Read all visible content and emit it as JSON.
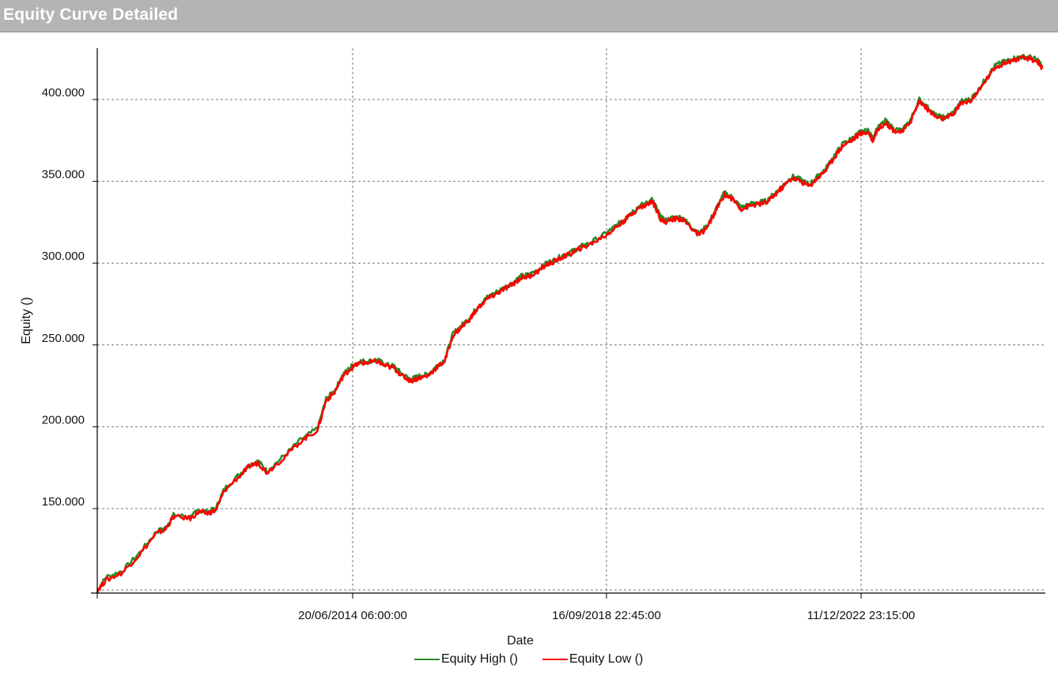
{
  "title": "Equity Curve Detailed",
  "colors": {
    "high": "#2a8a2a",
    "low": "#ff0000",
    "grid": "#777777"
  },
  "chart_data": {
    "type": "line",
    "xlabel": "Date",
    "ylabel": "Equity ()",
    "x_tick_labels": [
      "20/06/2014 06:00:00",
      "16/09/2018 22:45:00",
      "11/12/2022 23:15:00"
    ],
    "y_ticks": [
      150000,
      200000,
      250000,
      300000,
      350000,
      400000
    ],
    "y_tick_labels": [
      "150.000",
      "200.000",
      "250.000",
      "300.000",
      "350.000",
      "400.000"
    ],
    "ylim": [
      98000,
      430000
    ],
    "grid": true,
    "legend_position": "bottom-center",
    "series": [
      {
        "name": "Equity High ()",
        "color": "#2a8a2a",
        "points": [
          [
            0,
            100000
          ],
          [
            0.01,
            108000
          ],
          [
            0.03,
            112000
          ],
          [
            0.05,
            123000
          ],
          [
            0.07,
            136000
          ],
          [
            0.08,
            138000
          ],
          [
            0.09,
            146000
          ],
          [
            0.11,
            145000
          ],
          [
            0.12,
            149000
          ],
          [
            0.13,
            148000
          ],
          [
            0.14,
            150000
          ],
          [
            0.15,
            162000
          ],
          [
            0.17,
            172000
          ],
          [
            0.18,
            177000
          ],
          [
            0.19,
            179000
          ],
          [
            0.2,
            173000
          ],
          [
            0.22,
            182000
          ],
          [
            0.24,
            192000
          ],
          [
            0.26,
            199000
          ],
          [
            0.27,
            217000
          ],
          [
            0.28,
            222000
          ],
          [
            0.29,
            232000
          ],
          [
            0.3,
            237000
          ],
          [
            0.31,
            240000
          ],
          [
            0.32,
            240000
          ],
          [
            0.33,
            241000
          ],
          [
            0.34,
            238000
          ],
          [
            0.35,
            237000
          ],
          [
            0.36,
            232000
          ],
          [
            0.37,
            229000
          ],
          [
            0.38,
            231000
          ],
          [
            0.39,
            232000
          ],
          [
            0.4,
            237000
          ],
          [
            0.41,
            241000
          ],
          [
            0.42,
            257000
          ],
          [
            0.43,
            262000
          ],
          [
            0.44,
            267000
          ],
          [
            0.45,
            274000
          ],
          [
            0.46,
            279000
          ],
          [
            0.47,
            282000
          ],
          [
            0.48,
            285000
          ],
          [
            0.49,
            288000
          ],
          [
            0.5,
            292000
          ],
          [
            0.51,
            293000
          ],
          [
            0.52,
            296000
          ],
          [
            0.53,
            300000
          ],
          [
            0.54,
            302000
          ],
          [
            0.55,
            305000
          ],
          [
            0.56,
            307000
          ],
          [
            0.57,
            310000
          ],
          [
            0.58,
            312000
          ],
          [
            0.6,
            318000
          ],
          [
            0.61,
            322000
          ],
          [
            0.62,
            326000
          ],
          [
            0.63,
            331000
          ],
          [
            0.64,
            335000
          ],
          [
            0.65,
            337000
          ],
          [
            0.655,
            339000
          ],
          [
            0.665,
            328000
          ],
          [
            0.67,
            326000
          ],
          [
            0.68,
            328000
          ],
          [
            0.69,
            328000
          ],
          [
            0.7,
            323000
          ],
          [
            0.71,
            318000
          ],
          [
            0.72,
            323000
          ],
          [
            0.73,
            333000
          ],
          [
            0.74,
            343000
          ],
          [
            0.75,
            340000
          ],
          [
            0.76,
            334000
          ],
          [
            0.77,
            336000
          ],
          [
            0.78,
            337000
          ],
          [
            0.79,
            338000
          ],
          [
            0.8,
            343000
          ],
          [
            0.81,
            348000
          ],
          [
            0.82,
            353000
          ],
          [
            0.83,
            351000
          ],
          [
            0.84,
            348000
          ],
          [
            0.85,
            353000
          ],
          [
            0.86,
            358000
          ],
          [
            0.87,
            366000
          ],
          [
            0.88,
            373000
          ],
          [
            0.89,
            376000
          ],
          [
            0.9,
            380000
          ],
          [
            0.91,
            381000
          ],
          [
            0.915,
            376000
          ],
          [
            0.92,
            382000
          ],
          [
            0.93,
            387000
          ],
          [
            0.94,
            382000
          ],
          [
            0.95,
            381000
          ],
          [
            0.96,
            388000
          ],
          [
            0.97,
            400000
          ],
          [
            0.98,
            395000
          ],
          [
            0.99,
            390000
          ],
          [
            1.0,
            389000
          ],
          [
            1.01,
            392000
          ],
          [
            1.02,
            399000
          ],
          [
            1.03,
            400000
          ],
          [
            1.04,
            406000
          ],
          [
            1.05,
            414000
          ],
          [
            1.06,
            421000
          ],
          [
            1.07,
            423000
          ],
          [
            1.08,
            425000
          ],
          [
            1.09,
            426000
          ],
          [
            1.1,
            426000
          ],
          [
            1.11,
            424000
          ],
          [
            1.115,
            420000
          ]
        ]
      },
      {
        "name": "Equity Low ()",
        "color": "#ff0000",
        "points": [
          [
            0,
            100000
          ],
          [
            0.01,
            106000
          ],
          [
            0.03,
            111000
          ],
          [
            0.05,
            122000
          ],
          [
            0.07,
            135000
          ],
          [
            0.08,
            137000
          ],
          [
            0.09,
            145000
          ],
          [
            0.11,
            144000
          ],
          [
            0.12,
            148000
          ],
          [
            0.13,
            147000
          ],
          [
            0.14,
            149000
          ],
          [
            0.15,
            161000
          ],
          [
            0.17,
            171000
          ],
          [
            0.18,
            176000
          ],
          [
            0.19,
            178000
          ],
          [
            0.2,
            172000
          ],
          [
            0.22,
            181000
          ],
          [
            0.24,
            191000
          ],
          [
            0.26,
            198000
          ],
          [
            0.27,
            216000
          ],
          [
            0.28,
            221000
          ],
          [
            0.29,
            231000
          ],
          [
            0.3,
            236000
          ],
          [
            0.31,
            239000
          ],
          [
            0.32,
            239000
          ],
          [
            0.33,
            240000
          ],
          [
            0.34,
            237000
          ],
          [
            0.35,
            236000
          ],
          [
            0.36,
            231000
          ],
          [
            0.37,
            228000
          ],
          [
            0.38,
            230000
          ],
          [
            0.39,
            231000
          ],
          [
            0.4,
            236000
          ],
          [
            0.41,
            240000
          ],
          [
            0.42,
            256000
          ],
          [
            0.43,
            261000
          ],
          [
            0.44,
            266000
          ],
          [
            0.45,
            273000
          ],
          [
            0.46,
            278000
          ],
          [
            0.47,
            281000
          ],
          [
            0.48,
            284000
          ],
          [
            0.49,
            287000
          ],
          [
            0.5,
            291000
          ],
          [
            0.51,
            292000
          ],
          [
            0.52,
            295000
          ],
          [
            0.53,
            299000
          ],
          [
            0.54,
            301000
          ],
          [
            0.55,
            304000
          ],
          [
            0.56,
            306000
          ],
          [
            0.57,
            309000
          ],
          [
            0.58,
            311000
          ],
          [
            0.6,
            317000
          ],
          [
            0.61,
            321000
          ],
          [
            0.62,
            325000
          ],
          [
            0.63,
            330000
          ],
          [
            0.64,
            334000
          ],
          [
            0.65,
            336000
          ],
          [
            0.655,
            338000
          ],
          [
            0.665,
            327000
          ],
          [
            0.67,
            325000
          ],
          [
            0.68,
            327000
          ],
          [
            0.69,
            327000
          ],
          [
            0.7,
            322000
          ],
          [
            0.71,
            317000
          ],
          [
            0.72,
            322000
          ],
          [
            0.73,
            332000
          ],
          [
            0.74,
            342000
          ],
          [
            0.75,
            339000
          ],
          [
            0.76,
            333000
          ],
          [
            0.77,
            335000
          ],
          [
            0.78,
            336000
          ],
          [
            0.79,
            337000
          ],
          [
            0.8,
            342000
          ],
          [
            0.81,
            347000
          ],
          [
            0.82,
            352000
          ],
          [
            0.83,
            350000
          ],
          [
            0.84,
            347000
          ],
          [
            0.85,
            352000
          ],
          [
            0.86,
            357000
          ],
          [
            0.87,
            365000
          ],
          [
            0.88,
            372000
          ],
          [
            0.89,
            375000
          ],
          [
            0.9,
            379000
          ],
          [
            0.91,
            380000
          ],
          [
            0.915,
            375000
          ],
          [
            0.92,
            381000
          ],
          [
            0.93,
            386000
          ],
          [
            0.94,
            381000
          ],
          [
            0.95,
            380000
          ],
          [
            0.96,
            387000
          ],
          [
            0.97,
            399000
          ],
          [
            0.98,
            394000
          ],
          [
            0.99,
            389000
          ],
          [
            1.0,
            388000
          ],
          [
            1.01,
            391000
          ],
          [
            1.02,
            398000
          ],
          [
            1.03,
            399000
          ],
          [
            1.04,
            405000
          ],
          [
            1.05,
            413000
          ],
          [
            1.06,
            420000
          ],
          [
            1.07,
            422000
          ],
          [
            1.08,
            424000
          ],
          [
            1.09,
            425000
          ],
          [
            1.1,
            425000
          ],
          [
            1.11,
            423000
          ],
          [
            1.115,
            419000
          ]
        ]
      }
    ]
  }
}
